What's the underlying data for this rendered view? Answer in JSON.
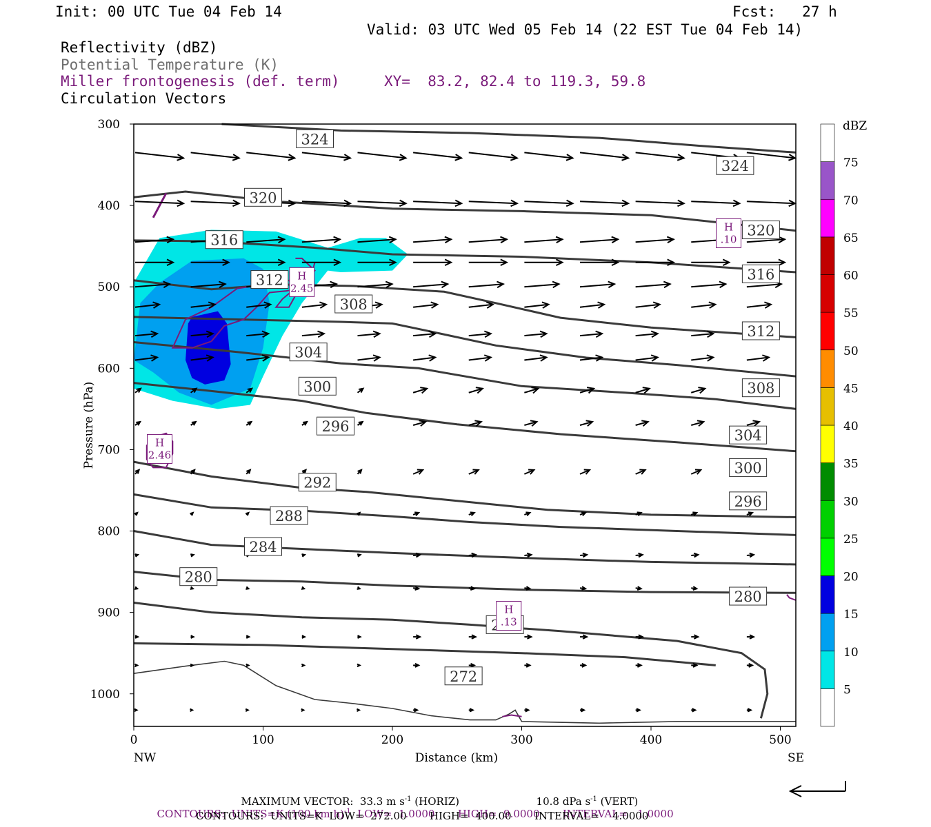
{
  "header": {
    "init": "Init: 00 UTC Tue 04 Feb 14",
    "fcst": "Fcst:   27 h",
    "valid": "Valid: 03 UTC Wed 05 Feb 14 (22 EST Tue 04 Feb 14)",
    "field1": "Reflectivity (dBZ)",
    "field2": "Potential Temperature (K)",
    "field3": "Miller frontogenesis (def. term)",
    "xy": "XY=  83.2, 82.4 to 119.3, 59.8",
    "field4": "Circulation Vectors"
  },
  "colors": {
    "theta": "#3a3a3a",
    "fronto": "#7a1a7a",
    "axis_text_grey": "#6e6e6e"
  },
  "chart_data": {
    "type": "cross-section",
    "xlabel": "Distance (km)",
    "ylabel": "Pressure (hPa)",
    "x_range": [
      0,
      512
    ],
    "y_range": [
      300,
      1040
    ],
    "x_ticks": [
      0,
      100,
      200,
      300,
      400,
      500
    ],
    "y_ticks": [
      300,
      400,
      500,
      600,
      700,
      800,
      900,
      1000
    ],
    "x_end_labels": {
      "left": "NW",
      "right": "SE"
    },
    "colorbar": {
      "unit": "dBZ",
      "levels": [
        5,
        10,
        15,
        20,
        25,
        30,
        35,
        40,
        45,
        50,
        55,
        60,
        65,
        70,
        75
      ],
      "colors": [
        "#00e6e6",
        "#00a0f0",
        "#0000e0",
        "#00ff00",
        "#00d000",
        "#008c00",
        "#ffff00",
        "#e6bf00",
        "#ff8c00",
        "#ff0000",
        "#d60000",
        "#c00000",
        "#ff00ff",
        "#9955c9",
        "#ffffff"
      ]
    },
    "reflectivity_cells": [
      {
        "dbz_min": 5,
        "x_km_range": [
          0,
          215
        ],
        "p_hPa_range": [
          435,
          665
        ]
      },
      {
        "dbz_min": 10,
        "x_km_range": [
          0,
          105
        ],
        "p_hPa_range": [
          465,
          655
        ]
      },
      {
        "dbz_min": 15,
        "x_km_range": [
          40,
          75
        ],
        "p_hPa_range": [
          530,
          620
        ]
      }
    ],
    "theta_contours": [
      {
        "value": 324,
        "label": "324"
      },
      {
        "value": 320,
        "label": "320"
      },
      {
        "value": 316,
        "label": "316"
      },
      {
        "value": 312,
        "label": "312"
      },
      {
        "value": 308,
        "label": "308"
      },
      {
        "value": 304,
        "label": "304"
      },
      {
        "value": 300,
        "label": "300"
      },
      {
        "value": 296,
        "label": "296"
      },
      {
        "value": 292,
        "label": "292"
      },
      {
        "value": 288,
        "label": "288"
      },
      {
        "value": 284,
        "label": "284"
      },
      {
        "value": 280,
        "label": "280"
      },
      {
        "value": 276,
        "label": "276"
      },
      {
        "value": 272,
        "label": "272"
      }
    ],
    "fronto_maxima": [
      {
        "label": "H",
        "value": "2.45",
        "x_km": 130,
        "p_hPa": 495
      },
      {
        "label": "H",
        "value": "2.46",
        "x_km": 20,
        "p_hPa": 700
      },
      {
        "label": "H",
        "value": ".10",
        "x_km": 460,
        "p_hPa": 435
      },
      {
        "label": "H",
        "value": ".13",
        "x_km": 290,
        "p_hPa": 905
      }
    ]
  },
  "footer": {
    "max_vector": "MAXIMUM VECTOR:  33.3 m s",
    "max_vector_horiz": " (HORIZ)",
    "max_vector_vert": "10.8 dPa s",
    "max_vector_vert2": " (VERT)",
    "contours1": "CONTOURS:  UNITS=K (100 km h)",
    "contours1b": "  LOW=  1.0000       HIGH=  9.0000       INTERVAL=   1.0000",
    "contours2": "CONTOURS:  UNITS=K  LOW=  272.00       HIGH=  400.00       INTERVAL=    4.0000",
    "sup": "-1"
  }
}
